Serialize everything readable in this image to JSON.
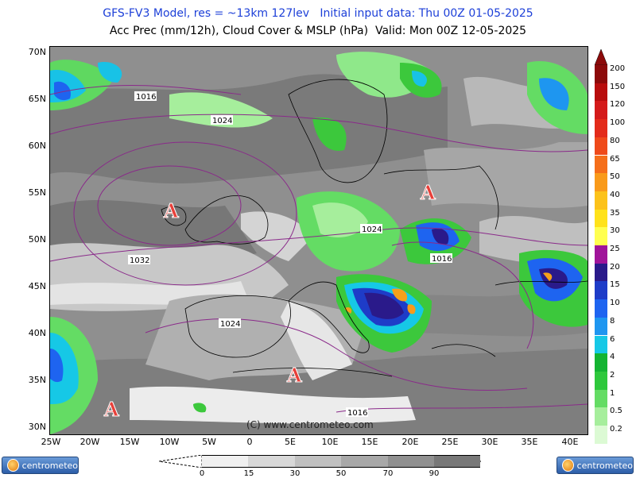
{
  "header": {
    "line1": "GFS-FV3 Model, res = ~13km 127lev   Initial input data: Thu 00Z 01-05-2025",
    "line2": "Acc Prec (mm/12h), Cloud Cover & MSLP (hPa)  Valid: Mon 00Z 12-05-2025"
  },
  "axes": {
    "lat_labels": [
      "70N",
      "65N",
      "60N",
      "55N",
      "50N",
      "45N",
      "40N",
      "35N",
      "30N"
    ],
    "lon_labels": [
      "25W",
      "20W",
      "15W",
      "10W",
      "5W",
      "0",
      "5E",
      "10E",
      "15E",
      "20E",
      "25E",
      "30E",
      "35E",
      "40E"
    ]
  },
  "isobars": {
    "labels": [
      "1016",
      "1024",
      "1032",
      "1024",
      "1024",
      "1016",
      "1016"
    ]
  },
  "pressure_centers": [
    {
      "type": "high",
      "symbol": "A"
    },
    {
      "type": "high",
      "symbol": "A"
    },
    {
      "type": "high",
      "symbol": "A"
    },
    {
      "type": "high",
      "symbol": "A"
    }
  ],
  "precip_legend": {
    "labels": [
      "200",
      "150",
      "120",
      "100",
      "80",
      "65",
      "50",
      "40",
      "35",
      "30",
      "25",
      "20",
      "15",
      "10",
      "8",
      "6",
      "4",
      "2",
      "1",
      "0.5",
      "0.2"
    ],
    "colors": [
      "#8c0a0a",
      "#b80d0d",
      "#d41a1a",
      "#e32b1a",
      "#ef4a1a",
      "#f56e1a",
      "#f99a1a",
      "#fcc21a",
      "#ffe21a",
      "#ffff50",
      "#a0149a",
      "#2a1a8a",
      "#1e3cc8",
      "#1e64f0",
      "#1e96f0",
      "#16c8e6",
      "#14b432",
      "#2ec83c",
      "#64dc64",
      "#a6ee9c",
      "#dcfad4"
    ]
  },
  "cloud_legend": {
    "labels": [
      "0",
      "15",
      "30",
      "50",
      "70",
      "90"
    ],
    "colors": [
      "#f0f0f0",
      "#d8d8d8",
      "#c0c0c0",
      "#a8a8a8",
      "#909090",
      "#787878"
    ]
  },
  "copyright": "(C) www.centrometeo.com",
  "logo_left": "centrometeo",
  "logo_right": "centrometeo"
}
